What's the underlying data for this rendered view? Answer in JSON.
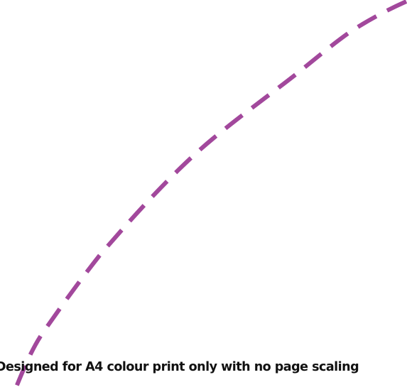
{
  "print_notice": "Designed for A4 colour print only with no page scaling",
  "curve": {
    "stroke_color": "#a2489c",
    "style": "dashed"
  }
}
